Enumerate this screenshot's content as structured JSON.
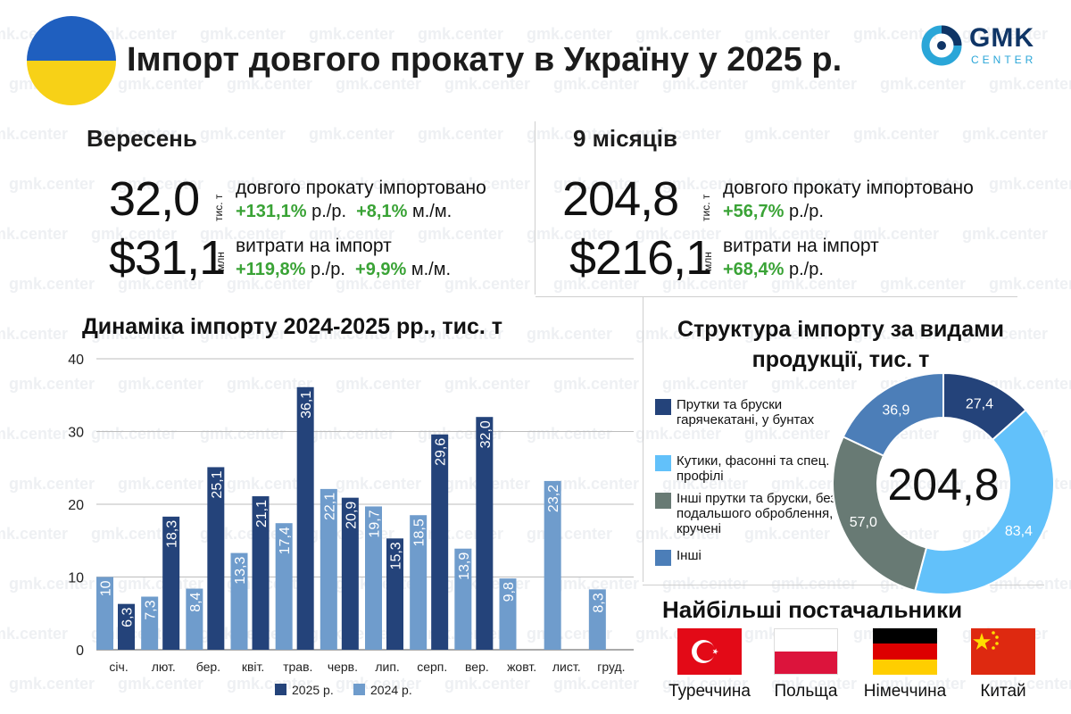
{
  "header": {
    "title": "Імпорт довгого прокату в Україну у 2025 р.",
    "logo_main": "GMK",
    "logo_sub": "CENTER"
  },
  "september": {
    "heading": "Вересень",
    "volume": "32,0",
    "volume_unit": "тис. т",
    "volume_desc": "довгого прокату імпортовано",
    "volume_yoy": "+131,1%",
    "yoy_label": "р./р.",
    "volume_mom": "+8,1%",
    "mom_label": "м./м.",
    "cost": "$31,1",
    "cost_unit": "млн",
    "cost_desc": "витрати на імпорт",
    "cost_yoy": "+119,8%",
    "cost_mom": "+9,9%"
  },
  "nine_months": {
    "heading": "9 місяців",
    "volume": "204,8",
    "volume_unit": "тис. т",
    "volume_desc": "довгого прокату імпортовано",
    "volume_yoy": "+56,7%",
    "yoy_label": "р./р.",
    "cost": "$216,1",
    "cost_unit": "млн",
    "cost_desc": "витрати на імпорт",
    "cost_yoy": "+68,4%"
  },
  "chart_data": [
    {
      "type": "bar",
      "title": "Динаміка імпорту 2024-2025 рр., тис. т",
      "categories": [
        "січ.",
        "лют.",
        "бер.",
        "квіт.",
        "трав.",
        "черв.",
        "лип.",
        "серп.",
        "вер.",
        "жовт.",
        "лист.",
        "груд."
      ],
      "series": [
        {
          "name": "2024 р.",
          "color": "#6f9ccc",
          "values": [
            10,
            7.3,
            8.4,
            13.3,
            17.4,
            22.1,
            19.7,
            18.5,
            13.9,
            9.8,
            23.2,
            8.3
          ],
          "labels": [
            "10",
            "7,3",
            "8,4",
            "13,3",
            "17,4",
            "22,1",
            "19,7",
            "18,5",
            "13,9",
            "9,8",
            "23,2",
            "8,3"
          ]
        },
        {
          "name": "2025 р.",
          "color": "#24437a",
          "values": [
            6.3,
            18.3,
            25.1,
            21.1,
            36.1,
            20.9,
            15.3,
            29.6,
            32.0,
            null,
            null,
            null
          ],
          "labels": [
            "6,3",
            "18,3",
            "25,1",
            "21,1",
            "36,1",
            "20,9",
            "15,3",
            "29,6",
            "32,0",
            "",
            "",
            ""
          ]
        }
      ],
      "ylim": [
        0,
        40
      ],
      "yticks": [
        0,
        10,
        20,
        30,
        40
      ],
      "grid": true,
      "legend": "bottom"
    },
    {
      "type": "pie",
      "title": "Структура імпорту за видами продукції, тис. т",
      "center_label": "204,8",
      "slices": [
        {
          "name": "Прутки та бруски гарячекатані, у бунтах",
          "value": 27.4,
          "label": "27,4",
          "color": "#24437a"
        },
        {
          "name": "Кутики, фасонні та спец. профілі",
          "value": 83.4,
          "label": "83,4",
          "color": "#62c1fa"
        },
        {
          "name": "Інші прутки та бруски, без подальшого оброблення, кручені",
          "value": 57.0,
          "label": "57,0",
          "color": "#687a74"
        },
        {
          "name": "Інші",
          "value": 36.9,
          "label": "36,9",
          "color": "#4c7eb8"
        }
      ],
      "legend": "left"
    }
  ],
  "suppliers": {
    "title": "Найбільші постачальники",
    "items": [
      {
        "name": "Туреччина",
        "flag": "turkey-flag"
      },
      {
        "name": "Польща",
        "flag": "poland-flag"
      },
      {
        "name": "Німеччина",
        "flag": "germany-flag"
      },
      {
        "name": "Китай",
        "flag": "china-flag"
      }
    ]
  }
}
